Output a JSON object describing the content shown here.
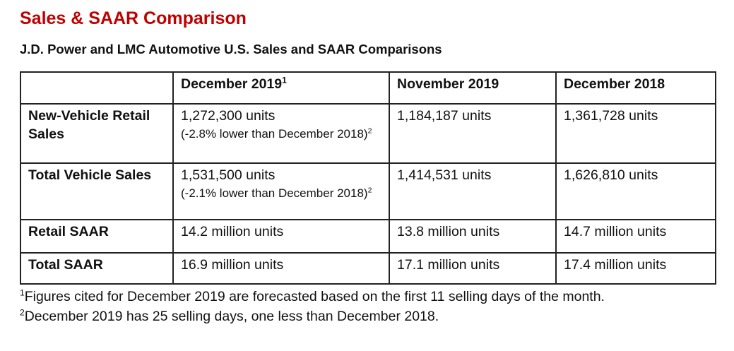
{
  "title": "Sales & SAAR Comparison",
  "subtitle": "J.D. Power and LMC Automotive U.S. Sales and SAAR Comparisons",
  "table": {
    "columns": [
      {
        "label": "",
        "sup": ""
      },
      {
        "label": "December 2019",
        "sup": "1"
      },
      {
        "label": "November 2019",
        "sup": ""
      },
      {
        "label": "December 2018",
        "sup": ""
      }
    ],
    "rows": [
      {
        "label": "New-Vehicle Retail Sales",
        "dec2019": "1,272,300 units",
        "dec2019_note": "(-2.8% lower than December 2018)",
        "dec2019_note_sup": "2",
        "nov2019": "1,184,187 units",
        "dec2018": "1,361,728 units"
      },
      {
        "label": "Total Vehicle Sales",
        "dec2019": "1,531,500 units",
        "dec2019_note": "(-2.1% lower than December 2018)",
        "dec2019_note_sup": "2",
        "nov2019": "1,414,531 units",
        "dec2018": "1,626,810 units"
      },
      {
        "label": "Retail SAAR",
        "dec2019": "14.2 million units",
        "nov2019": "13.8 million units",
        "dec2018": "14.7 million units"
      },
      {
        "label": "Total SAAR",
        "dec2019": "16.9 million units",
        "nov2019": "17.1 million units",
        "dec2018": "17.4 million units"
      }
    ]
  },
  "footnotes": [
    {
      "sup": "1",
      "text": "Figures cited for December 2019 are forecasted based on the first 11 selling days of the month."
    },
    {
      "sup": "2",
      "text": "December 2019 has 25 selling days, one less than December 2018."
    }
  ],
  "colors": {
    "title": "#c00000",
    "text": "#111111",
    "border": "#222222"
  }
}
